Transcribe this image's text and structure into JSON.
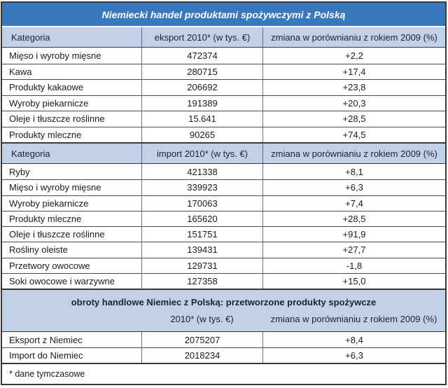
{
  "title": "Niemiecki handel produktami spożywczymi z Polską",
  "footnote": "* dane tymczasowe",
  "colors": {
    "title_bg": "#3878bd",
    "header_bg": "#c3d1e8",
    "frame_border": "#383838",
    "title_text": "#ffffff",
    "header_text": "#17223c",
    "body_text": "#1b1b1b"
  },
  "chart_data": [
    {
      "type": "table",
      "name": "eksport-z-niemiec-do-polski",
      "columns": [
        "Kategoria",
        "eksport 2010* (w tys. €)",
        "zmiana w porównianiu z rokiem 2009 (%)"
      ],
      "rows": [
        [
          "Mięso i wyroby mięsne",
          "472374",
          "+2,2"
        ],
        [
          "Kawa",
          "280715",
          "+17,4"
        ],
        [
          "Produkty kakaowe",
          "206692",
          "+23,8"
        ],
        [
          "Wyroby piekarnicze",
          "191389",
          "+20,3"
        ],
        [
          "Oleje i tłuszcze roślinne",
          "15.641",
          "+28,5"
        ],
        [
          "Produkty mleczne",
          "90265",
          "+74,5"
        ]
      ]
    },
    {
      "type": "table",
      "name": "import-do-niemiec-z-polski",
      "columns": [
        "Kategoria",
        "import 2010* (w tys. €)",
        "zmiana w porównianiu z rokiem 2009 (%)"
      ],
      "rows": [
        [
          "Ryby",
          "421338",
          "+8,1"
        ],
        [
          "Mięso i wyroby mięsne",
          "339923",
          "+6,3"
        ],
        [
          "Wyroby piekarnicze",
          "170063",
          "+7,4"
        ],
        [
          "Produkty mleczne",
          "165620",
          "+28,5"
        ],
        [
          "Oleje i tłuszcze roślinne",
          "151751",
          "+91,9"
        ],
        [
          "Rośliny oleiste",
          "139431",
          "+27,7"
        ],
        [
          "Przetwory owocowe",
          "129731",
          "-1,8"
        ],
        [
          "Soki owocowe i warzywne",
          "127358",
          "+15,0"
        ]
      ]
    },
    {
      "type": "table",
      "name": "obroty-handlowe",
      "title": "obroty handlowe Niemiec z Polską: przetworzone produkty spożywcze",
      "columns": [
        "",
        "2010* (w tys. €)",
        "zmiana w porównianiu z rokiem 2009 (%)"
      ],
      "rows": [
        [
          "Eksport z Niemiec",
          "2075207",
          "+8,4"
        ],
        [
          "Import do Niemiec",
          "2018234",
          "+6,3"
        ]
      ]
    }
  ]
}
